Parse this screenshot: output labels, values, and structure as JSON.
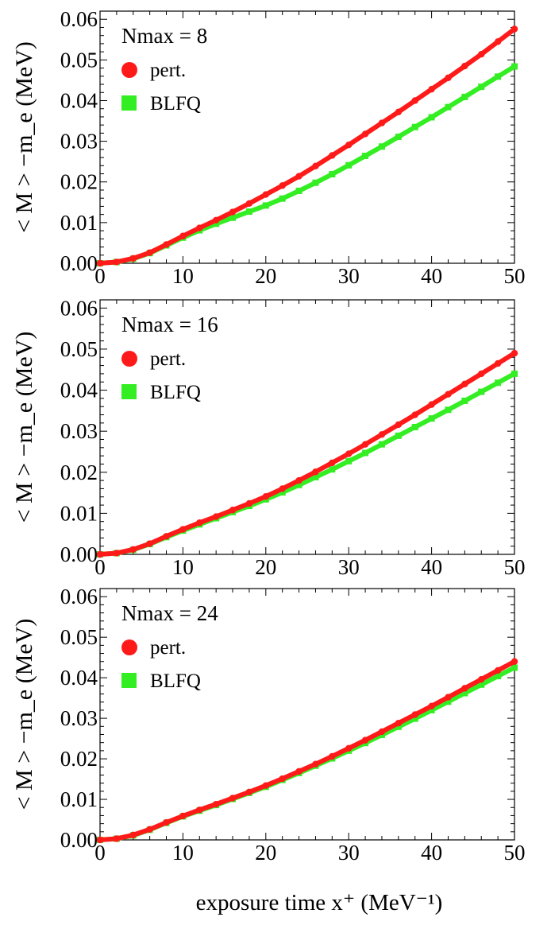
{
  "chart_data": [
    {
      "type": "scatter",
      "panel": "top",
      "title": "",
      "xlabel": "",
      "ylabel": "< M > −m_e (MeV)",
      "xlim": [
        0,
        50
      ],
      "ylim": [
        0,
        0.062
      ],
      "x_ticks": [
        "0",
        "10",
        "20",
        "30",
        "40",
        "50"
      ],
      "y_ticks": [
        "0.00",
        "0.01",
        "0.02",
        "0.03",
        "0.04",
        "0.05",
        "0.06"
      ],
      "grid": false,
      "legend_placement": "top-left",
      "legend_title": "Nmax = 8",
      "series": [
        {
          "name": "pert.",
          "color": "#ff1a1a",
          "marker": "circle",
          "x": [
            0,
            2,
            4,
            6,
            8,
            10,
            12,
            14,
            16,
            18,
            20,
            22,
            24,
            26,
            28,
            30,
            32,
            34,
            36,
            38,
            40,
            42,
            44,
            46,
            48,
            50
          ],
          "y": [
            0.0,
            0.0003,
            0.0012,
            0.0026,
            0.0046,
            0.0067,
            0.0087,
            0.0106,
            0.0126,
            0.0147,
            0.0169,
            0.0191,
            0.0214,
            0.0239,
            0.0265,
            0.0291,
            0.0318,
            0.0345,
            0.0372,
            0.04,
            0.0428,
            0.0456,
            0.0485,
            0.0514,
            0.0545,
            0.0576
          ]
        },
        {
          "name": "BLFQ",
          "color": "#33ee22",
          "marker": "square",
          "x": [
            0,
            2,
            4,
            6,
            8,
            10,
            12,
            14,
            16,
            18,
            20,
            22,
            24,
            26,
            28,
            30,
            32,
            34,
            36,
            38,
            40,
            42,
            44,
            46,
            48,
            50
          ],
          "y": [
            0.0,
            0.0003,
            0.0011,
            0.0025,
            0.0044,
            0.0063,
            0.0081,
            0.0097,
            0.0112,
            0.0127,
            0.0142,
            0.0159,
            0.0178,
            0.0198,
            0.0219,
            0.0241,
            0.0264,
            0.0287,
            0.0311,
            0.0335,
            0.0359,
            0.0384,
            0.0409,
            0.0434,
            0.0459,
            0.0484
          ]
        }
      ]
    },
    {
      "type": "scatter",
      "panel": "middle",
      "title": "",
      "xlabel": "",
      "ylabel": "< M > −m_e (MeV)",
      "xlim": [
        0,
        50
      ],
      "ylim": [
        0,
        0.062
      ],
      "x_ticks": [
        "0",
        "10",
        "20",
        "30",
        "40",
        "50"
      ],
      "y_ticks": [
        "0.00",
        "0.01",
        "0.02",
        "0.03",
        "0.04",
        "0.05",
        "0.06"
      ],
      "grid": false,
      "legend_placement": "top-left",
      "legend_title": "Nmax = 16",
      "series": [
        {
          "name": "pert.",
          "color": "#ff1a1a",
          "marker": "circle",
          "x": [
            0,
            2,
            4,
            6,
            8,
            10,
            12,
            14,
            16,
            18,
            20,
            22,
            24,
            26,
            28,
            30,
            32,
            34,
            36,
            38,
            40,
            42,
            44,
            46,
            48,
            50
          ],
          "y": [
            0.0,
            0.0003,
            0.0012,
            0.0026,
            0.0044,
            0.0061,
            0.0077,
            0.0092,
            0.0108,
            0.0124,
            0.0141,
            0.016,
            0.018,
            0.0201,
            0.0223,
            0.0245,
            0.0268,
            0.0292,
            0.0316,
            0.034,
            0.0365,
            0.039,
            0.0415,
            0.044,
            0.0465,
            0.049
          ]
        },
        {
          "name": "BLFQ",
          "color": "#33ee22",
          "marker": "square",
          "x": [
            0,
            2,
            4,
            6,
            8,
            10,
            12,
            14,
            16,
            18,
            20,
            22,
            24,
            26,
            28,
            30,
            32,
            34,
            36,
            38,
            40,
            42,
            44,
            46,
            48,
            50
          ],
          "y": [
            0.0,
            0.0003,
            0.0011,
            0.0025,
            0.0042,
            0.0058,
            0.0073,
            0.0088,
            0.0103,
            0.0118,
            0.0134,
            0.0151,
            0.0169,
            0.0188,
            0.0207,
            0.0227,
            0.0247,
            0.0268,
            0.0289,
            0.031,
            0.0331,
            0.0352,
            0.0374,
            0.0396,
            0.0418,
            0.044
          ]
        }
      ]
    },
    {
      "type": "scatter",
      "panel": "bottom",
      "title": "",
      "xlabel": "exposure time x⁺ (MeV⁻¹)",
      "ylabel": "< M > −m_e (MeV)",
      "xlim": [
        0,
        50
      ],
      "ylim": [
        0,
        0.062
      ],
      "x_ticks": [
        "0",
        "10",
        "20",
        "30",
        "40",
        "50"
      ],
      "y_ticks": [
        "0.00",
        "0.01",
        "0.02",
        "0.03",
        "0.04",
        "0.05",
        "0.06"
      ],
      "grid": false,
      "legend_placement": "top-left",
      "legend_title": "Nmax = 24",
      "series": [
        {
          "name": "pert.",
          "color": "#ff1a1a",
          "marker": "circle",
          "x": [
            0,
            2,
            4,
            6,
            8,
            10,
            12,
            14,
            16,
            18,
            20,
            22,
            24,
            26,
            28,
            30,
            32,
            34,
            36,
            38,
            40,
            42,
            44,
            46,
            48,
            50
          ],
          "y": [
            0.0,
            0.0003,
            0.0012,
            0.0026,
            0.0043,
            0.0059,
            0.0074,
            0.0088,
            0.0103,
            0.0118,
            0.0134,
            0.0151,
            0.0169,
            0.0187,
            0.0206,
            0.0226,
            0.0246,
            0.0267,
            0.0288,
            0.0309,
            0.033,
            0.0352,
            0.0374,
            0.0396,
            0.0418,
            0.044
          ]
        },
        {
          "name": "BLFQ",
          "color": "#33ee22",
          "marker": "square",
          "x": [
            0,
            2,
            4,
            6,
            8,
            10,
            12,
            14,
            16,
            18,
            20,
            22,
            24,
            26,
            28,
            30,
            32,
            34,
            36,
            38,
            40,
            42,
            44,
            46,
            48,
            50
          ],
          "y": [
            0.0,
            0.0003,
            0.0011,
            0.0025,
            0.0042,
            0.0058,
            0.0072,
            0.0086,
            0.0101,
            0.0116,
            0.0131,
            0.0148,
            0.0165,
            0.0183,
            0.0201,
            0.022,
            0.0239,
            0.0259,
            0.0279,
            0.0299,
            0.032,
            0.0341,
            0.0362,
            0.0383,
            0.0404,
            0.0425
          ]
        }
      ]
    }
  ],
  "colors": {
    "pert": "#ff1a1a",
    "blfq": "#33ee22",
    "axis": "#000000"
  }
}
